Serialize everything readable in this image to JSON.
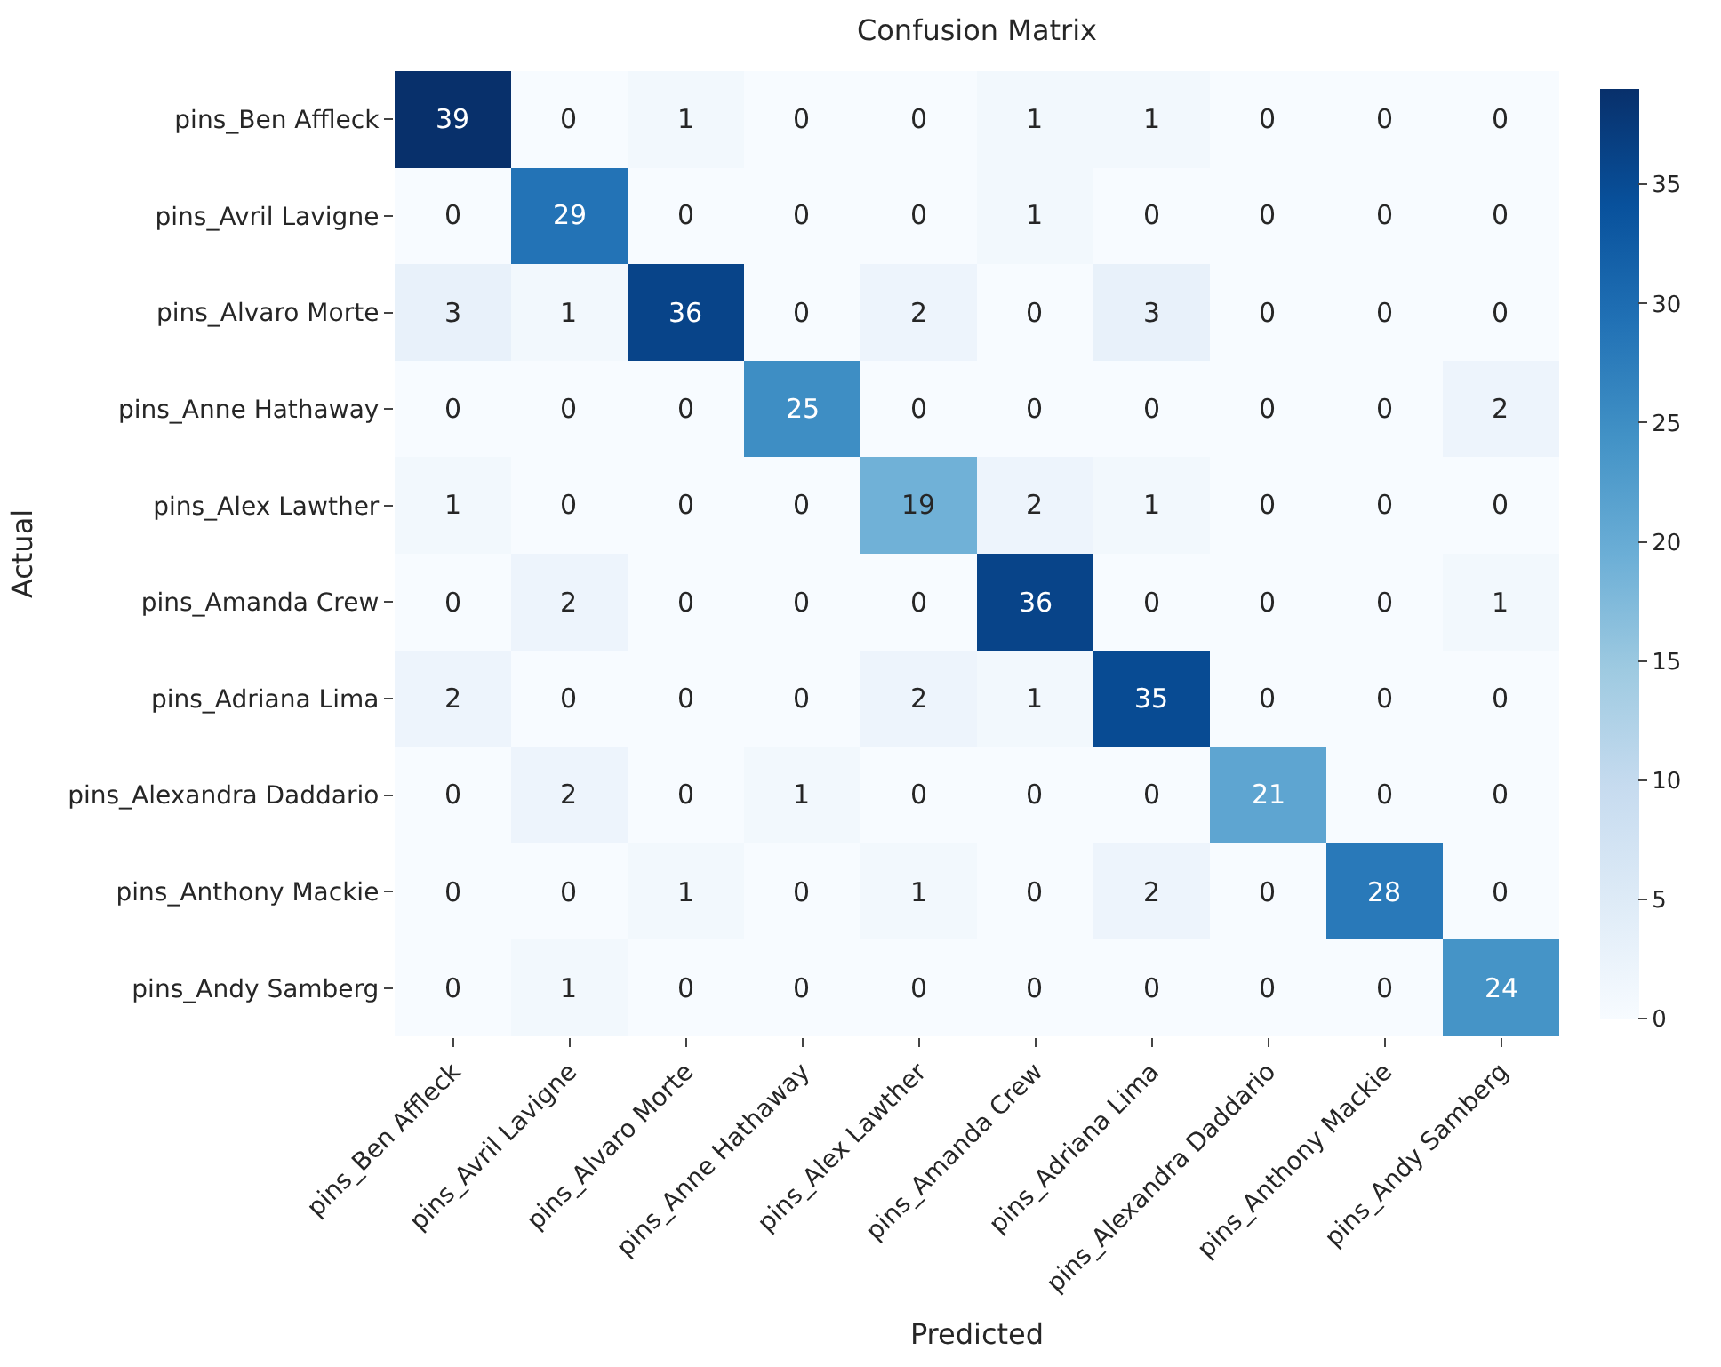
{
  "chart_data": {
    "type": "heatmap",
    "title": "Confusion Matrix",
    "xlabel": "Predicted",
    "ylabel": "Actual",
    "categories": [
      "pins_Ben Affleck",
      "pins_Avril Lavigne",
      "pins_Alvaro Morte",
      "pins_Anne Hathaway",
      "pins_Alex Lawther",
      "pins_Amanda Crew",
      "pins_Adriana Lima",
      "pins_Alexandra Daddario",
      "pins_Anthony Mackie",
      "pins_Andy Samberg"
    ],
    "y_categories": [
      "pins_Ben Affleck",
      "pins_Avril Lavigne",
      "pins_Alvaro Morte",
      "pins_Anne Hathaway",
      "pins_Alex Lawther",
      "pins_Amanda Crew",
      "pins_Adriana Lima",
      "pins_Alexandra Daddario",
      "pins_Anthony Mackie",
      "pins_Andy Samberg"
    ],
    "cells": [
      [
        39,
        0,
        1,
        0,
        0,
        1,
        1,
        0,
        0,
        0
      ],
      [
        0,
        29,
        0,
        0,
        0,
        1,
        0,
        0,
        0,
        0
      ],
      [
        3,
        1,
        36,
        0,
        2,
        0,
        3,
        0,
        0,
        0
      ],
      [
        0,
        0,
        0,
        25,
        0,
        0,
        0,
        0,
        0,
        2
      ],
      [
        1,
        0,
        0,
        0,
        19,
        2,
        1,
        0,
        0,
        0
      ],
      [
        0,
        2,
        0,
        0,
        0,
        36,
        0,
        0,
        0,
        1
      ],
      [
        2,
        0,
        0,
        0,
        2,
        1,
        35,
        0,
        0,
        0
      ],
      [
        0,
        2,
        0,
        1,
        0,
        0,
        0,
        21,
        0,
        0
      ],
      [
        0,
        0,
        1,
        0,
        1,
        0,
        2,
        0,
        28,
        0
      ],
      [
        0,
        1,
        0,
        0,
        0,
        0,
        0,
        0,
        0,
        24
      ]
    ],
    "clim": [
      0,
      39
    ],
    "cticks": [
      0,
      5,
      10,
      15,
      20,
      25,
      30,
      35
    ],
    "data_labels": true
  }
}
